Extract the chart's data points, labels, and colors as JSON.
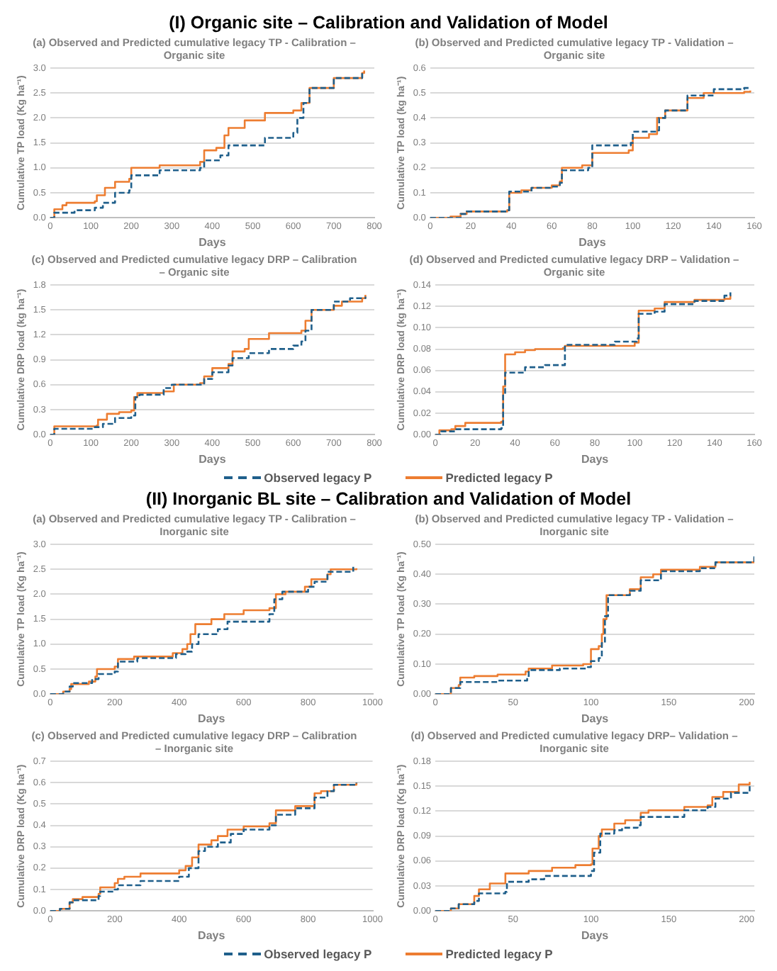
{
  "chart_data": [
    {
      "type": "other",
      "title": "(I) Organic site – Calibration and Validation of Model"
    },
    {
      "type": "step",
      "title": "(a) Observed and Predicted cumulative legacy TP - Calibration – Organic site",
      "xlabel": "Days",
      "ylabel": "Cumulative TP load (Kg ha⁻¹)",
      "xlim": [
        0,
        800
      ],
      "xticks": [
        0,
        100,
        200,
        300,
        400,
        500,
        600,
        700,
        800
      ],
      "ylim": [
        0,
        3
      ],
      "yticks": [
        {
          "value": 0,
          "label": "0.0"
        },
        0.5,
        {
          "value": 1,
          "label": "1.0"
        },
        1.5,
        {
          "value": 2,
          "label": "2.0"
        },
        2.5,
        {
          "value": 3,
          "label": "3.0"
        }
      ],
      "grid": "y",
      "series": [
        {
          "color": "#1f5f8b",
          "line_style": "dashed",
          "x": [
            0,
            10,
            60,
            110,
            130,
            160,
            195,
            200,
            270,
            370,
            380,
            420,
            440,
            530,
            600,
            610,
            625,
            640,
            700,
            770
          ],
          "values": [
            0,
            0.1,
            0.15,
            0.2,
            0.3,
            0.5,
            0.55,
            0.85,
            0.95,
            1.0,
            1.15,
            1.25,
            1.45,
            1.6,
            1.7,
            2.0,
            2.3,
            2.6,
            2.8,
            2.9
          ]
        },
        {
          "color": "#ed7d31",
          "line_style": "solid",
          "x": [
            0,
            10,
            30,
            40,
            110,
            115,
            135,
            160,
            195,
            200,
            270,
            370,
            380,
            410,
            430,
            440,
            480,
            530,
            600,
            620,
            640,
            700,
            770,
            775
          ],
          "values": [
            0,
            0.17,
            0.25,
            0.3,
            0.33,
            0.45,
            0.6,
            0.72,
            0.78,
            1.0,
            1.05,
            1.12,
            1.35,
            1.4,
            1.65,
            1.8,
            1.95,
            2.1,
            2.15,
            2.3,
            2.6,
            2.8,
            2.9,
            2.95
          ]
        }
      ]
    },
    {
      "type": "step",
      "title": "(b) Observed and Predicted cumulative legacy TP - Validation – Organic site",
      "xlabel": "Days",
      "ylabel": "Cumulative TP load (kg ha⁻¹)",
      "xlim": [
        0,
        160
      ],
      "xticks": [
        0,
        20,
        40,
        60,
        80,
        100,
        120,
        140,
        160
      ],
      "ylim": [
        0,
        0.6
      ],
      "yticks": [
        {
          "value": 0,
          "label": "0.0"
        },
        0.1,
        0.2,
        0.3,
        0.4,
        0.5,
        0.6
      ],
      "grid": "y",
      "series": [
        {
          "color": "#1f5f8b",
          "line_style": "dashed",
          "x": [
            0,
            15,
            18,
            38,
            39,
            50,
            60,
            64,
            65,
            78,
            80,
            99,
            100,
            112,
            113,
            116,
            127,
            140,
            155,
            158
          ],
          "values": [
            0,
            0.015,
            0.025,
            0.03,
            0.105,
            0.12,
            0.125,
            0.14,
            0.19,
            0.2,
            0.29,
            0.3,
            0.345,
            0.35,
            0.4,
            0.43,
            0.49,
            0.515,
            0.52,
            0.525
          ]
        },
        {
          "color": "#ed7d31",
          "line_style": "solid",
          "x": [
            0,
            10,
            15,
            18,
            38,
            39,
            45,
            50,
            60,
            64,
            65,
            75,
            80,
            98,
            100,
            108,
            112,
            116,
            127,
            135,
            155,
            158
          ],
          "values": [
            0,
            0.005,
            0.015,
            0.025,
            0.03,
            0.1,
            0.11,
            0.12,
            0.13,
            0.145,
            0.2,
            0.21,
            0.26,
            0.27,
            0.32,
            0.335,
            0.4,
            0.43,
            0.48,
            0.5,
            0.505,
            0.51
          ]
        }
      ]
    },
    {
      "type": "step",
      "title": "(c) Observed and Predicted cumulative legacy DRP – Calibration – Organic site",
      "xlabel": "Days",
      "ylabel": "Cumulative DRP load (kg ha⁻¹)",
      "xlim": [
        0,
        800
      ],
      "xticks": [
        0,
        100,
        200,
        300,
        400,
        500,
        600,
        700,
        800
      ],
      "ylim": [
        0,
        1.8
      ],
      "yticks": [
        {
          "value": 0,
          "label": "0.0"
        },
        0.3,
        0.6,
        0.9,
        1.2,
        1.5,
        1.8
      ],
      "grid": "y",
      "legend": "bottom",
      "series": [
        {
          "name": "Observed legacy P",
          "color": "#1f5f8b",
          "line_style": "dashed",
          "x": [
            0,
            10,
            110,
            130,
            160,
            200,
            210,
            220,
            280,
            300,
            380,
            400,
            440,
            450,
            490,
            540,
            600,
            620,
            630,
            645,
            700,
            740,
            778
          ],
          "values": [
            0,
            0.07,
            0.09,
            0.13,
            0.2,
            0.23,
            0.45,
            0.48,
            0.56,
            0.6,
            0.67,
            0.75,
            0.83,
            0.92,
            0.98,
            1.03,
            1.07,
            1.12,
            1.25,
            1.5,
            1.6,
            1.64,
            1.66
          ]
        },
        {
          "name": "Predicted legacy P",
          "color": "#ed7d31",
          "line_style": "solid",
          "x": [
            0,
            10,
            115,
            118,
            140,
            170,
            200,
            207,
            215,
            280,
            305,
            370,
            380,
            400,
            440,
            450,
            480,
            490,
            540,
            620,
            630,
            645,
            700,
            720,
            770,
            778
          ],
          "values": [
            0,
            0.1,
            0.11,
            0.18,
            0.25,
            0.27,
            0.29,
            0.45,
            0.5,
            0.52,
            0.6,
            0.62,
            0.7,
            0.8,
            0.85,
            1.0,
            1.03,
            1.15,
            1.22,
            1.25,
            1.37,
            1.5,
            1.55,
            1.6,
            1.64,
            1.68
          ]
        }
      ]
    },
    {
      "type": "step",
      "title": "(d) Observed and Predicted cumulative legacy DRP – Validation – Organic site",
      "xlabel": "Days",
      "ylabel": "Cumulative DRP load (kg ha⁻¹)",
      "xlim": [
        0,
        160
      ],
      "xticks": [
        0,
        20,
        40,
        60,
        80,
        100,
        120,
        140,
        160
      ],
      "ylim": [
        0,
        0.14
      ],
      "yticks": [
        {
          "value": 0,
          "label": "0.00"
        },
        0.02,
        0.04,
        0.06,
        0.08,
        {
          "value": 0.1,
          "label": "0.10"
        },
        0.12,
        0.14
      ],
      "grid": "y",
      "series": [
        {
          "color": "#1f5f8b",
          "line_style": "dashed",
          "x": [
            0,
            3,
            10,
            33,
            34,
            35,
            45,
            55,
            64,
            65,
            90,
            101,
            102,
            110,
            115,
            130,
            145,
            148
          ],
          "values": [
            0,
            0.003,
            0.005,
            0.006,
            0.038,
            0.058,
            0.063,
            0.065,
            0.065,
            0.084,
            0.087,
            0.09,
            0.113,
            0.115,
            0.122,
            0.125,
            0.13,
            0.133
          ]
        },
        {
          "color": "#ed7d31",
          "line_style": "solid",
          "x": [
            0,
            2,
            8,
            10,
            15,
            33,
            34,
            35,
            40,
            45,
            50,
            64,
            65,
            100,
            102,
            110,
            115,
            130,
            145,
            148
          ],
          "values": [
            0,
            0.004,
            0.005,
            0.008,
            0.011,
            0.012,
            0.045,
            0.075,
            0.077,
            0.079,
            0.08,
            0.081,
            0.083,
            0.086,
            0.116,
            0.118,
            0.124,
            0.126,
            0.127,
            0.13
          ]
        }
      ]
    },
    {
      "type": "other",
      "title": "(II) Inorganic BL site – Calibration and Validation of Model"
    },
    {
      "type": "step",
      "title": "(a) Observed and Predicted cumulative legacy TP - Calibration – Inorganic site",
      "xlabel": "Days",
      "ylabel": "Cumulative TP load (Kg ha⁻¹)",
      "xlim": [
        0,
        1000
      ],
      "xticks": [
        0,
        200,
        400,
        600,
        800,
        1000
      ],
      "ylim": [
        0,
        3
      ],
      "yticks": [
        {
          "value": 0,
          "label": "0.0"
        },
        0.5,
        {
          "value": 1,
          "label": "1.0"
        },
        1.5,
        {
          "value": 2,
          "label": "2.0"
        },
        2.5,
        {
          "value": 3,
          "label": "3.0"
        }
      ],
      "grid": "y",
      "series": [
        {
          "color": "#1f5f8b",
          "line_style": "dashed",
          "x": [
            0,
            40,
            60,
            70,
            130,
            150,
            200,
            210,
            270,
            390,
            420,
            440,
            460,
            520,
            550,
            680,
            695,
            720,
            800,
            820,
            860,
            940
          ],
          "values": [
            0,
            0.05,
            0.15,
            0.22,
            0.3,
            0.4,
            0.45,
            0.65,
            0.72,
            0.8,
            0.85,
            1.0,
            1.2,
            1.3,
            1.45,
            1.6,
            1.9,
            2.05,
            2.15,
            2.25,
            2.45,
            2.55
          ]
        },
        {
          "color": "#ed7d31",
          "line_style": "solid",
          "x": [
            0,
            40,
            60,
            65,
            120,
            140,
            145,
            200,
            210,
            260,
            380,
            410,
            425,
            435,
            450,
            500,
            540,
            600,
            680,
            700,
            730,
            790,
            810,
            860,
            870,
            950
          ],
          "values": [
            0,
            0.05,
            0.1,
            0.2,
            0.25,
            0.35,
            0.5,
            0.55,
            0.7,
            0.75,
            0.82,
            0.9,
            1.0,
            1.2,
            1.4,
            1.5,
            1.6,
            1.68,
            1.72,
            2.0,
            2.05,
            2.15,
            2.3,
            2.4,
            2.5,
            2.52
          ]
        }
      ]
    },
    {
      "type": "step",
      "title": "(b) Observed and Predicted cumulative legacy TP - Validation – Inorganic site",
      "xlabel": "Days",
      "ylabel": "Cumulative TP load (Kg ha⁻¹)",
      "xlim": [
        0,
        205
      ],
      "xticks": [
        0,
        50,
        100,
        150,
        200
      ],
      "ylim": [
        0,
        0.5
      ],
      "yticks": [
        {
          "value": 0,
          "label": "0.00"
        },
        {
          "value": 0.1,
          "label": "0.10"
        },
        {
          "value": 0.2,
          "label": "0.20"
        },
        {
          "value": 0.3,
          "label": "0.30"
        },
        {
          "value": 0.4,
          "label": "0.40"
        },
        {
          "value": 0.5,
          "label": "0.50"
        }
      ],
      "grid": "y",
      "series": [
        {
          "color": "#1f5f8b",
          "line_style": "dashed",
          "x": [
            0,
            10,
            16,
            40,
            59,
            60,
            80,
            98,
            100,
            105,
            107,
            109,
            111,
            125,
            132,
            145,
            170,
            180,
            205
          ],
          "values": [
            0,
            0.02,
            0.04,
            0.045,
            0.055,
            0.08,
            0.085,
            0.09,
            0.11,
            0.12,
            0.17,
            0.26,
            0.33,
            0.345,
            0.38,
            0.41,
            0.42,
            0.44,
            0.46
          ]
        },
        {
          "color": "#ed7d31",
          "line_style": "solid",
          "x": [
            0,
            10,
            15,
            16,
            25,
            40,
            58,
            60,
            75,
            95,
            100,
            105,
            107,
            108,
            110,
            125,
            132,
            140,
            145,
            170,
            180,
            205
          ],
          "values": [
            0,
            0.02,
            0.03,
            0.055,
            0.06,
            0.065,
            0.075,
            0.085,
            0.095,
            0.1,
            0.15,
            0.16,
            0.2,
            0.25,
            0.33,
            0.35,
            0.39,
            0.4,
            0.415,
            0.425,
            0.44,
            0.455
          ]
        }
      ]
    },
    {
      "type": "step",
      "title": "(c) Observed and Predicted cumulative legacy DRP – Calibration – Inorganic site",
      "xlabel": "Days",
      "ylabel": "Cumulative DRP load (Kg ha⁻¹)",
      "xlim": [
        0,
        1000
      ],
      "xticks": [
        0,
        200,
        400,
        600,
        800,
        1000
      ],
      "ylim": [
        0,
        0.7
      ],
      "yticks": [
        {
          "value": 0,
          "label": "0.0"
        },
        0.1,
        0.2,
        0.3,
        0.4,
        0.5,
        0.6,
        0.7
      ],
      "grid": "y",
      "legend": "bottom",
      "series": [
        {
          "name": "Observed legacy P",
          "color": "#1f5f8b",
          "line_style": "dashed",
          "x": [
            0,
            30,
            60,
            70,
            150,
            155,
            200,
            210,
            280,
            400,
            430,
            460,
            480,
            520,
            560,
            600,
            680,
            700,
            760,
            820,
            860,
            880,
            950
          ],
          "values": [
            0,
            0.01,
            0.04,
            0.05,
            0.07,
            0.09,
            0.1,
            0.12,
            0.14,
            0.16,
            0.2,
            0.28,
            0.3,
            0.32,
            0.36,
            0.38,
            0.4,
            0.45,
            0.48,
            0.53,
            0.56,
            0.59,
            0.6
          ]
        },
        {
          "name": "Predicted legacy P",
          "color": "#ed7d31",
          "line_style": "solid",
          "x": [
            0,
            30,
            60,
            70,
            100,
            150,
            155,
            200,
            210,
            230,
            280,
            400,
            420,
            440,
            460,
            500,
            520,
            550,
            600,
            680,
            700,
            760,
            820,
            840,
            880,
            950
          ],
          "values": [
            0,
            0.01,
            0.04,
            0.055,
            0.065,
            0.08,
            0.11,
            0.13,
            0.15,
            0.16,
            0.175,
            0.19,
            0.21,
            0.25,
            0.31,
            0.33,
            0.35,
            0.38,
            0.395,
            0.41,
            0.47,
            0.49,
            0.55,
            0.56,
            0.59,
            0.6
          ]
        }
      ]
    },
    {
      "type": "step",
      "title": "(d) Observed and Predicted cumulative legacy DRP– Validation – Inorganic site",
      "xlabel": "Days",
      "ylabel": "Cumulative DRP load (Kg ha⁻¹)",
      "xlim": [
        0,
        205
      ],
      "xticks": [
        0,
        50,
        100,
        150,
        200
      ],
      "ylim": [
        0,
        0.18
      ],
      "yticks": [
        {
          "value": 0,
          "label": "0.00"
        },
        0.03,
        0.06,
        0.09,
        0.12,
        0.15,
        0.18
      ],
      "grid": "y",
      "series": [
        {
          "color": "#1f5f8b",
          "line_style": "dashed",
          "x": [
            0,
            10,
            15,
            25,
            28,
            45,
            46,
            60,
            70,
            100,
            102,
            106,
            115,
            120,
            130,
            132,
            160,
            175,
            180,
            190,
            202
          ],
          "values": [
            0,
            0.003,
            0.008,
            0.012,
            0.021,
            0.023,
            0.035,
            0.038,
            0.042,
            0.048,
            0.07,
            0.093,
            0.097,
            0.1,
            0.103,
            0.113,
            0.121,
            0.125,
            0.135,
            0.142,
            0.15
          ]
        },
        {
          "color": "#ed7d31",
          "line_style": "solid",
          "x": [
            0,
            10,
            15,
            25,
            28,
            35,
            45,
            60,
            75,
            90,
            100,
            101,
            105,
            107,
            115,
            122,
            132,
            137,
            160,
            175,
            178,
            185,
            195,
            202
          ],
          "values": [
            0,
            0.003,
            0.008,
            0.018,
            0.026,
            0.033,
            0.045,
            0.048,
            0.052,
            0.055,
            0.056,
            0.075,
            0.09,
            0.098,
            0.105,
            0.109,
            0.118,
            0.121,
            0.125,
            0.127,
            0.137,
            0.143,
            0.152,
            0.155
          ]
        }
      ]
    }
  ]
}
